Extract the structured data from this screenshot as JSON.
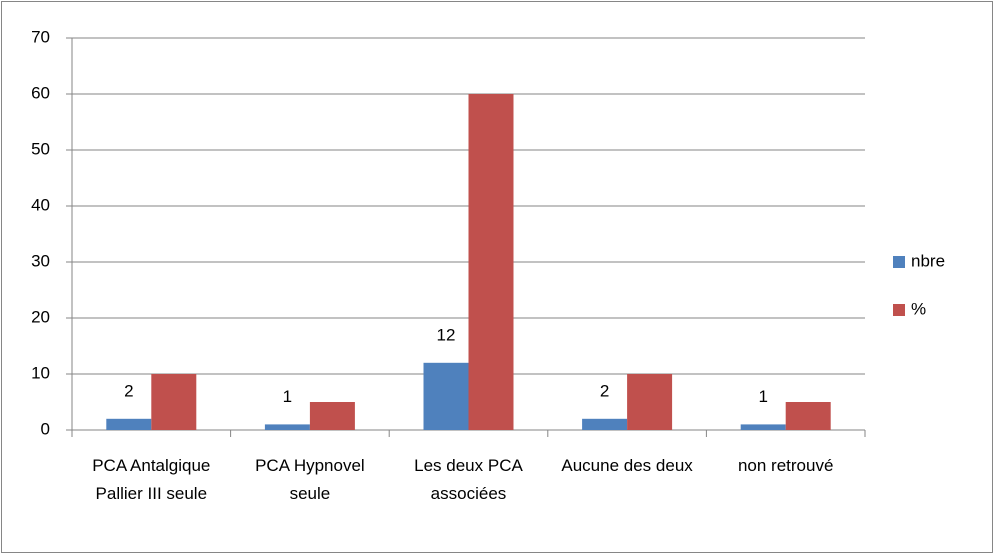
{
  "chart_data": {
    "type": "bar",
    "categories": [
      "PCA Antalgique Pallier III seule",
      "PCA Hypnovel seule",
      "Les deux PCA associées",
      "Aucune des deux",
      "non retrouvé"
    ],
    "series": [
      {
        "name": "nbre",
        "color": "#4f81bd",
        "values": [
          2,
          1,
          12,
          2,
          1
        ],
        "data_labels": true
      },
      {
        "name": "%",
        "color": "#c0504d",
        "values": [
          10,
          5,
          60,
          10,
          5
        ],
        "data_labels": false
      }
    ],
    "ylim": [
      0,
      70
    ],
    "yticks": [
      0,
      10,
      20,
      30,
      40,
      50,
      60,
      70
    ],
    "grid": true,
    "legend": "right"
  }
}
